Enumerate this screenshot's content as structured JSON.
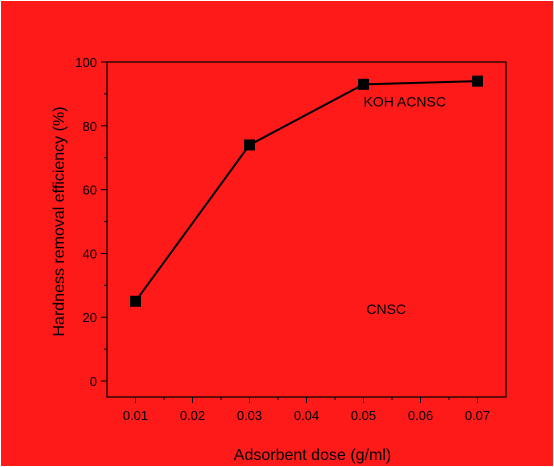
{
  "colors": {
    "background": "#ff1a1a",
    "frame": "#ffffff",
    "axis": "#000000",
    "series": "#000000"
  },
  "chart_data": {
    "type": "line",
    "title": "",
    "xlabel": "Adsorbent dose (g/ml)",
    "ylabel": "Hardness removal efficiency (%)",
    "xlim": [
      0.005,
      0.075
    ],
    "ylim": [
      -5,
      100
    ],
    "x_ticks": [
      0.01,
      0.02,
      0.03,
      0.04,
      0.05,
      0.06,
      0.07
    ],
    "x_tick_labels": [
      "0.01",
      "0.02",
      "0.03",
      "0.04",
      "0.05",
      "0.06",
      "0.07"
    ],
    "y_ticks": [
      0,
      20,
      40,
      60,
      80,
      100
    ],
    "y_tick_labels": [
      "0",
      "20",
      "40",
      "60",
      "80",
      "100"
    ],
    "grid": false,
    "marker": "square",
    "series": [
      {
        "x": [
          0.01,
          0.03,
          0.05,
          0.07
        ],
        "values": [
          25,
          74,
          93,
          94
        ]
      }
    ],
    "annotations": [
      {
        "text": "KOH ACNSC",
        "x": 0.05,
        "y": 86
      },
      {
        "text": "CNSC",
        "x": 0.0505,
        "y": 21
      }
    ]
  }
}
